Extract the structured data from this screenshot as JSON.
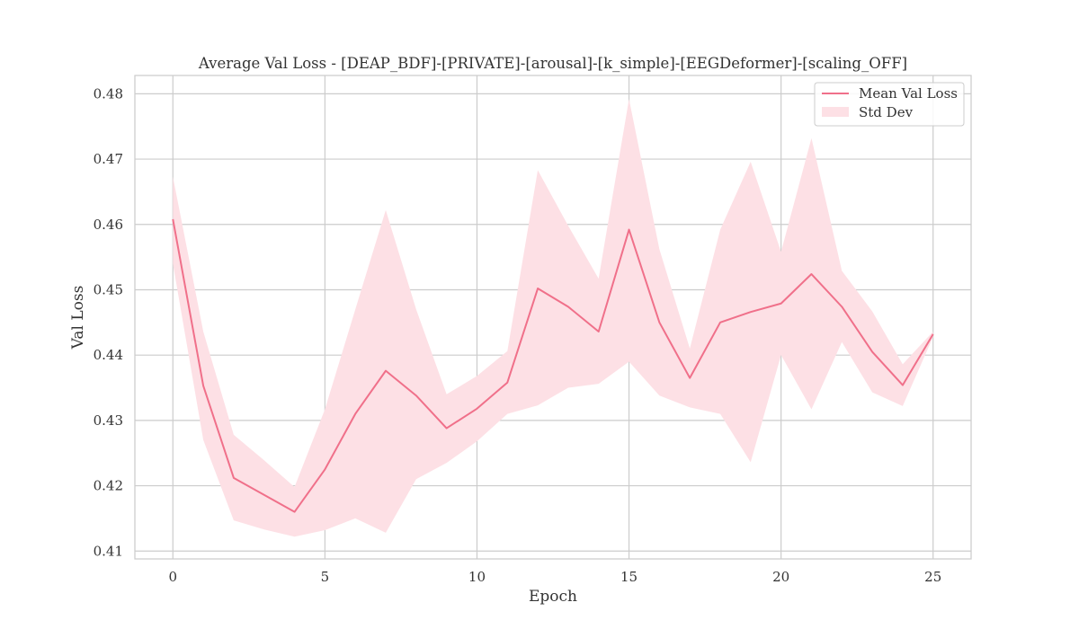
{
  "chart_data": {
    "type": "line",
    "title": "Average Val Loss - [DEAP_BDF]-[PRIVATE]-[arousal]-[k_simple]-[EEGDeformer]-[scaling_OFF]",
    "xlabel": "Epoch",
    "ylabel": "Val Loss",
    "xlim": [
      -1.25,
      26.25
    ],
    "ylim": [
      0.4088,
      0.4828
    ],
    "xticks": [
      0,
      5,
      10,
      15,
      20,
      25
    ],
    "xtick_labels": [
      "0",
      "5",
      "10",
      "15",
      "20",
      "25"
    ],
    "yticks": [
      0.41,
      0.42,
      0.43,
      0.44,
      0.45,
      0.46,
      0.47,
      0.48
    ],
    "ytick_labels": [
      "0.41",
      "0.42",
      "0.43",
      "0.44",
      "0.45",
      "0.46",
      "0.47",
      "0.48"
    ],
    "grid": true,
    "legend_position": "top-right",
    "line_color": "#f0708a",
    "band_color": "#fde0e5",
    "x": [
      0,
      1,
      2,
      3,
      4,
      5,
      6,
      7,
      8,
      9,
      10,
      11,
      12,
      13,
      14,
      15,
      16,
      17,
      18,
      19,
      20,
      21,
      22,
      23,
      24,
      25
    ],
    "series": [
      {
        "name": "Mean Val Loss",
        "kind": "line",
        "values": [
          0.4608,
          0.4353,
          0.4212,
          0.4186,
          0.416,
          0.4225,
          0.431,
          0.4376,
          0.4338,
          0.4288,
          0.4318,
          0.4358,
          0.4502,
          0.4474,
          0.4436,
          0.4592,
          0.445,
          0.4365,
          0.445,
          0.4466,
          0.4479,
          0.4524,
          0.4474,
          0.4405,
          0.4354,
          0.4432
        ]
      },
      {
        "name": "Std Dev",
        "kind": "band",
        "lower": [
          0.454,
          0.427,
          0.4147,
          0.4133,
          0.4122,
          0.4132,
          0.415,
          0.4128,
          0.421,
          0.4235,
          0.4268,
          0.431,
          0.4323,
          0.435,
          0.4356,
          0.439,
          0.4338,
          0.432,
          0.431,
          0.4236,
          0.44,
          0.4317,
          0.442,
          0.4343,
          0.4322,
          0.4428
        ],
        "upper": [
          0.4673,
          0.4436,
          0.4278,
          0.4239,
          0.4198,
          0.4317,
          0.447,
          0.4622,
          0.447,
          0.434,
          0.4368,
          0.4406,
          0.4683,
          0.4598,
          0.4517,
          0.4792,
          0.4562,
          0.441,
          0.4592,
          0.4696,
          0.4558,
          0.4732,
          0.4529,
          0.4467,
          0.4386,
          0.4436
        ]
      }
    ]
  }
}
